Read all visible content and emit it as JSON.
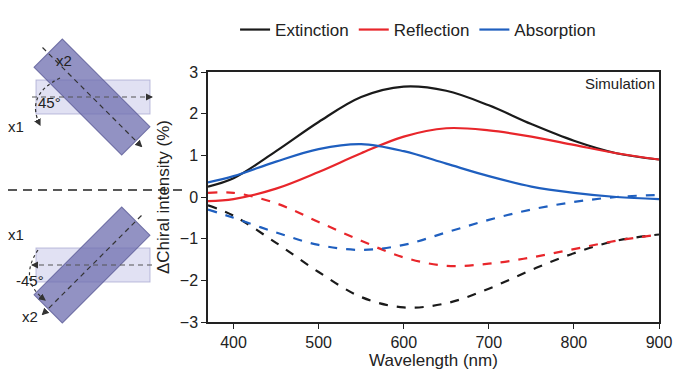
{
  "chart_data": {
    "type": "line",
    "x_label": "Wavelength (nm)",
    "y_label": "ΔChiral intensity (%)",
    "annotation": "Simulation",
    "x": [
      370,
      400,
      450,
      500,
      550,
      600,
      650,
      700,
      750,
      800,
      850,
      900
    ],
    "series": [
      {
        "name": "Extinction",
        "color": "#1a1a1a",
        "line_style": "solid",
        "values": [
          0.25,
          0.45,
          1.1,
          1.8,
          2.4,
          2.65,
          2.55,
          2.2,
          1.75,
          1.35,
          1.05,
          0.9
        ]
      },
      {
        "name": "Reflection",
        "color": "#e8262b",
        "line_style": "solid",
        "values": [
          -0.1,
          -0.05,
          0.2,
          0.6,
          1.05,
          1.45,
          1.65,
          1.6,
          1.45,
          1.25,
          1.05,
          0.9
        ]
      },
      {
        "name": "Absorption",
        "color": "#1f5fbf",
        "line_style": "solid",
        "values": [
          0.35,
          0.5,
          0.85,
          1.15,
          1.27,
          1.1,
          0.8,
          0.5,
          0.25,
          0.1,
          0.0,
          -0.05
        ]
      },
      {
        "color": "#1a1a1a",
        "line_style": "dashed",
        "values": [
          -0.2,
          -0.45,
          -1.1,
          -1.8,
          -2.4,
          -2.65,
          -2.55,
          -2.2,
          -1.75,
          -1.35,
          -1.05,
          -0.9
        ]
      },
      {
        "color": "#e8262b",
        "line_style": "dashed",
        "values": [
          0.1,
          0.1,
          -0.15,
          -0.6,
          -1.05,
          -1.45,
          -1.65,
          -1.6,
          -1.45,
          -1.25,
          -1.05,
          -0.9
        ]
      },
      {
        "color": "#1f5fbf",
        "line_style": "dashed",
        "values": [
          -0.3,
          -0.5,
          -0.85,
          -1.15,
          -1.27,
          -1.15,
          -0.85,
          -0.55,
          -0.3,
          -0.12,
          0.0,
          0.05
        ]
      }
    ],
    "xlim": [
      370,
      900
    ],
    "xticks": [
      400,
      500,
      600,
      700,
      800,
      900
    ],
    "ylim": [
      -3,
      3
    ],
    "yticks": [
      -3,
      -2,
      -1,
      0,
      1,
      2,
      3
    ],
    "grid": false,
    "legend": "top"
  },
  "inset_diagrams": [
    {
      "x1": "x1",
      "x2": "x2",
      "angle": "45°"
    },
    {
      "x1": "x1",
      "x2": "x2",
      "angle": "-45°"
    }
  ]
}
